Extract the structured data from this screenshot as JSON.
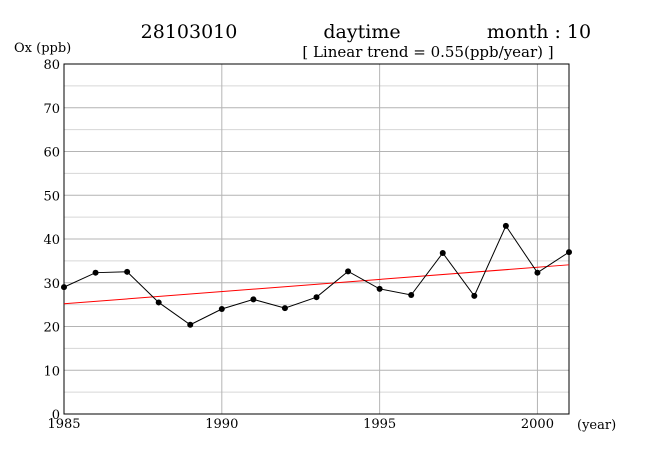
{
  "header": {
    "station": "28103010",
    "period": "daytime",
    "month_label": "month : 10",
    "trend_label": "[ Linear trend = 0.55(ppb/year) ]"
  },
  "chart_data": {
    "type": "line",
    "ylabel": "Ox (ppb)",
    "xlabel": "(year)",
    "xlim": [
      1985,
      2001
    ],
    "ylim": [
      0,
      80
    ],
    "x_ticks": [
      1985,
      1990,
      1995,
      2000
    ],
    "y_ticks": [
      0,
      10,
      20,
      30,
      40,
      50,
      60,
      70,
      80
    ],
    "grid": true,
    "series": [
      {
        "x": [
          1985,
          1986,
          1987,
          1988,
          1989,
          1990,
          1991,
          1992,
          1993,
          1994,
          1995,
          1996,
          1997,
          1998,
          1999,
          2000,
          2001
        ],
        "values": [
          29.0,
          32.3,
          32.5,
          25.5,
          20.4,
          24.0,
          26.2,
          24.2,
          26.7,
          32.6,
          28.6,
          27.2,
          36.8,
          27.0,
          43.0,
          32.3,
          37.0
        ],
        "color": "#000000"
      }
    ],
    "trend": {
      "slope": 0.55,
      "start": [
        1985,
        25.2
      ],
      "end": [
        2001,
        34.1
      ],
      "color": "#ff0000"
    }
  }
}
